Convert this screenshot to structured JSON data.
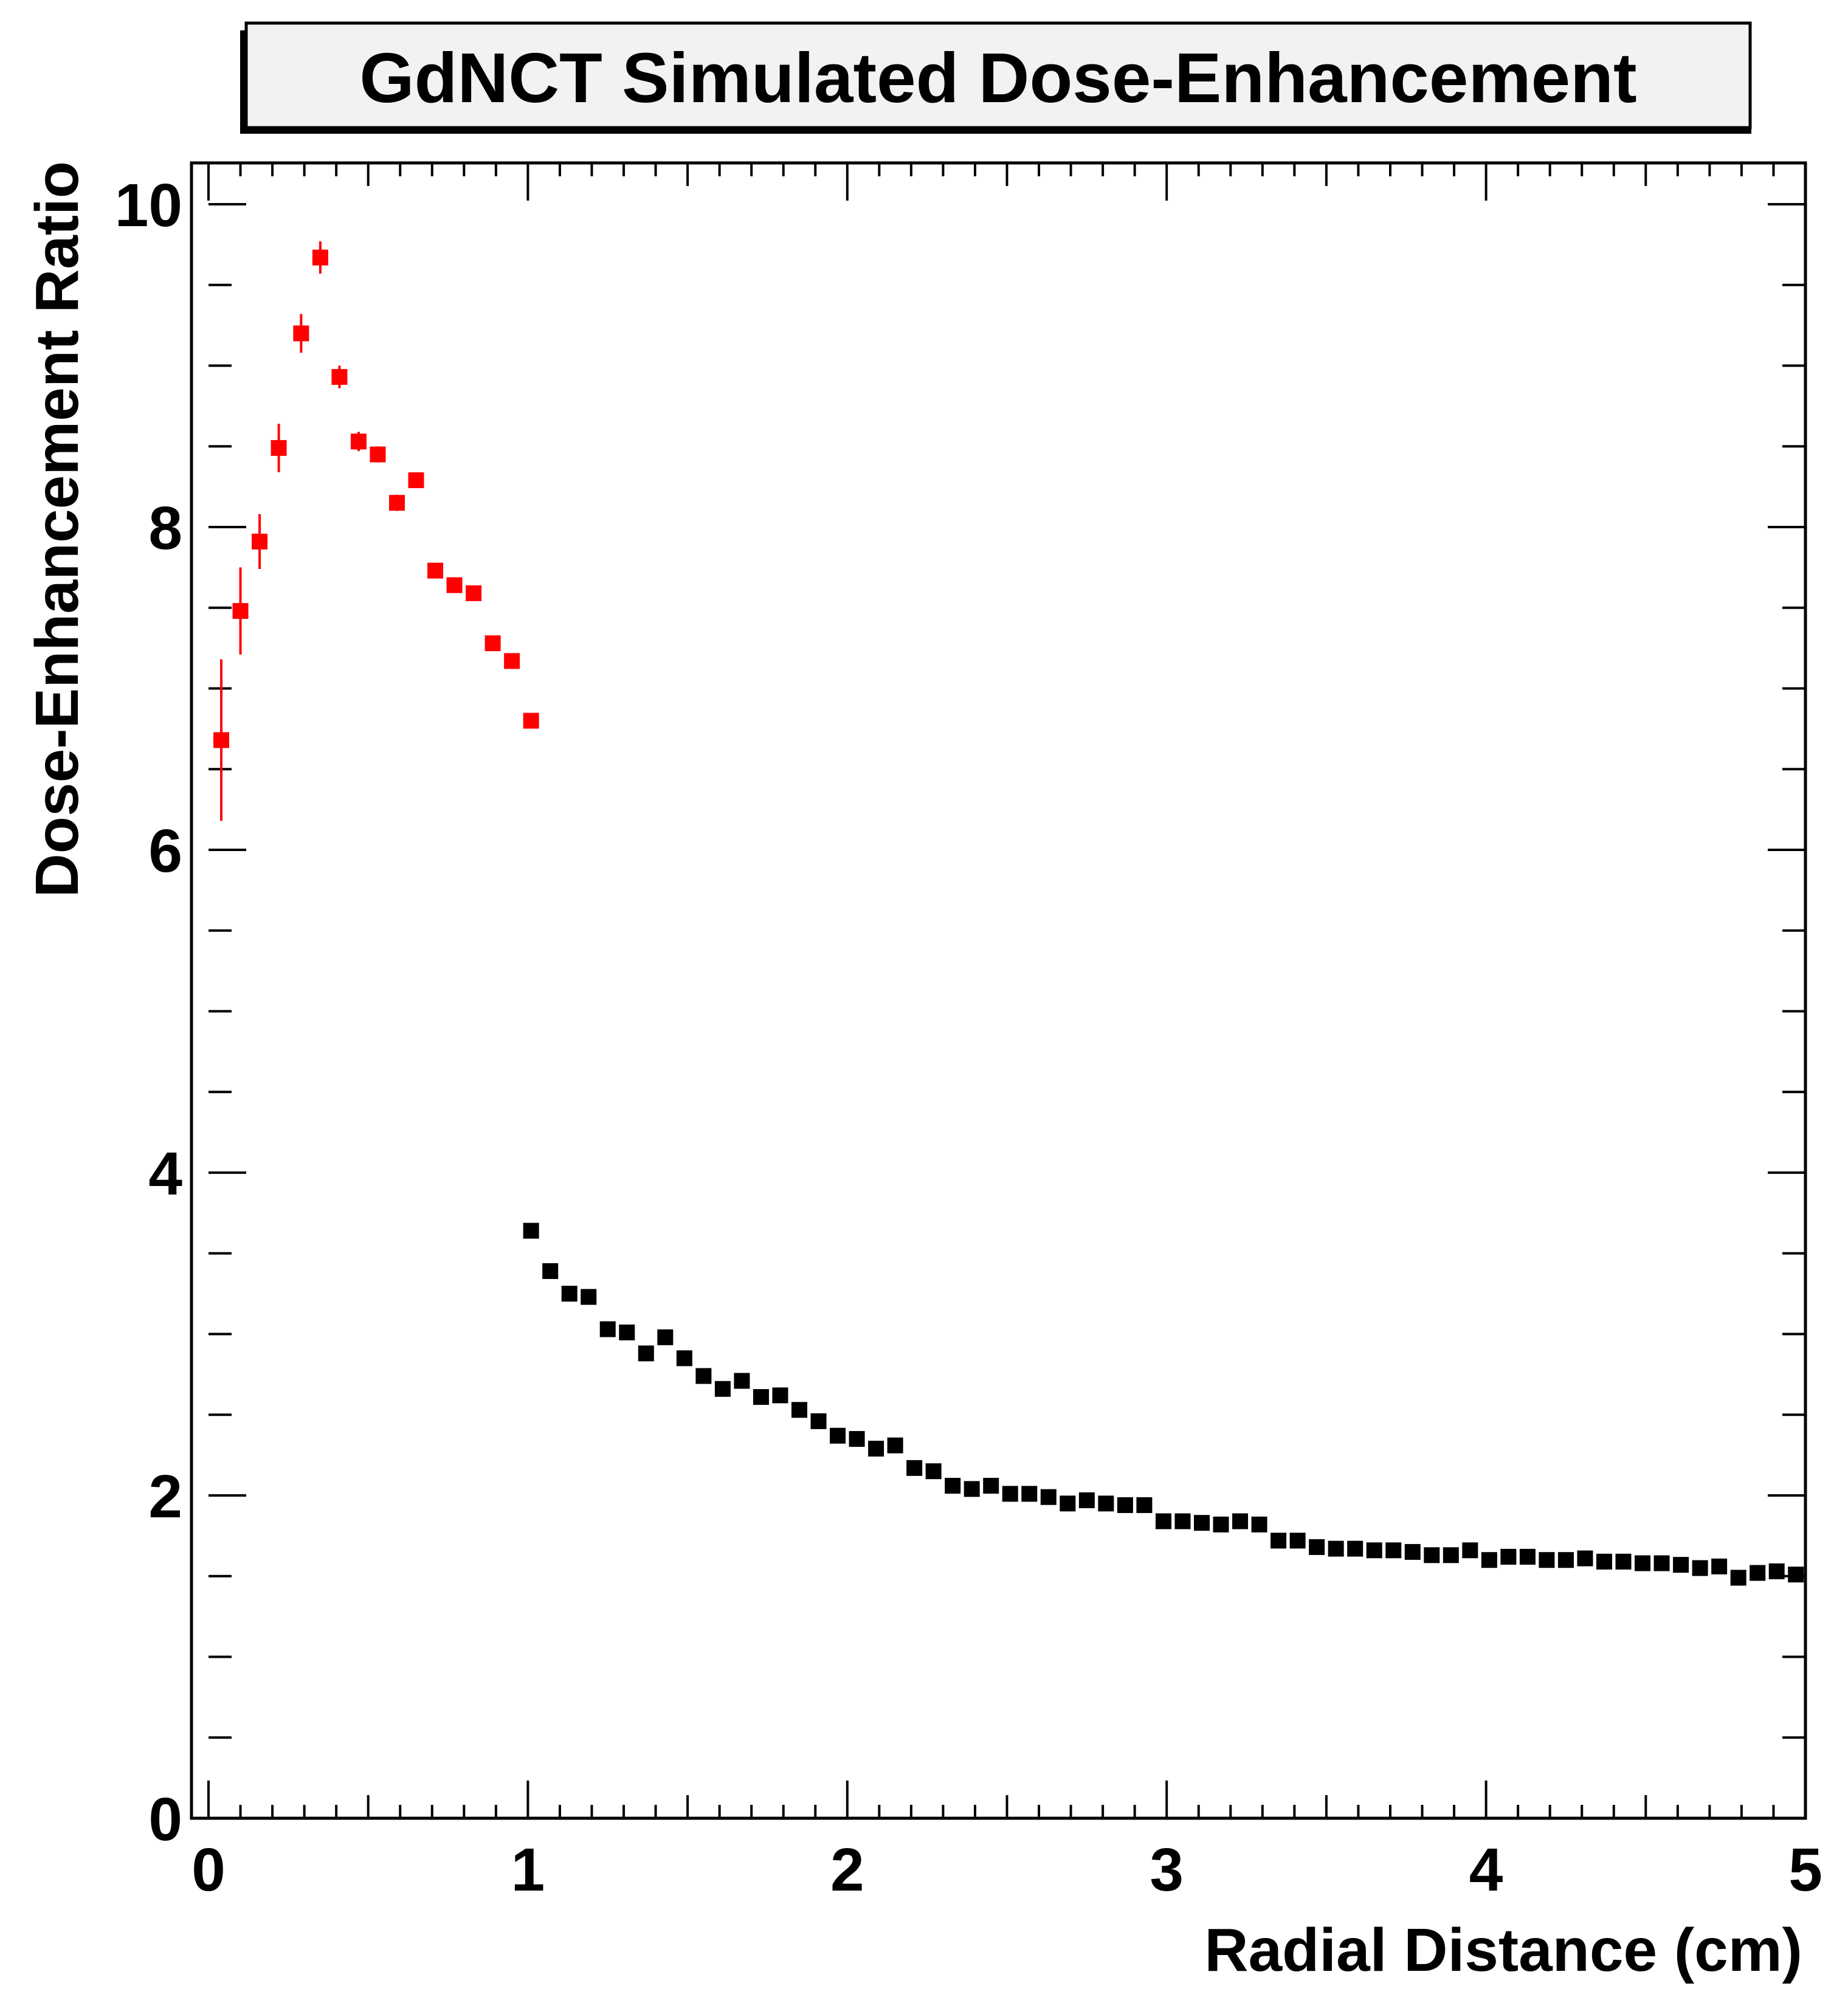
{
  "chart_data": {
    "type": "scatter",
    "title": "GdNCT Simulated Dose-Enhancement",
    "xlabel": "Radial Distance (cm)",
    "ylabel": "Dose-Enhancement Ratio",
    "xlim": [
      0,
      5
    ],
    "ylim": [
      0,
      10
    ],
    "x_ticks": [
      "0",
      "1",
      "2",
      "3",
      "4",
      "5"
    ],
    "y_ticks": [
      "0",
      "2",
      "4",
      "6",
      "8",
      "10"
    ],
    "grid": false,
    "legend": "none",
    "series": [
      {
        "color": "#ff0000",
        "points": [
          {
            "x": 0.04,
            "y": 6.68,
            "err": 0.5
          },
          {
            "x": 0.1,
            "y": 7.48,
            "err": 0.27
          },
          {
            "x": 0.16,
            "y": 7.91,
            "err": 0.17
          },
          {
            "x": 0.22,
            "y": 8.49,
            "err": 0.15
          },
          {
            "x": 0.29,
            "y": 9.2,
            "err": 0.12
          },
          {
            "x": 0.35,
            "y": 9.67,
            "err": 0.1
          },
          {
            "x": 0.41,
            "y": 8.93,
            "err": 0.07
          },
          {
            "x": 0.47,
            "y": 8.53,
            "err": 0.06
          },
          {
            "x": 0.53,
            "y": 8.45,
            "err": 0.05
          },
          {
            "x": 0.59,
            "y": 8.15,
            "err": 0.05
          },
          {
            "x": 0.65,
            "y": 8.29,
            "err": 0.04
          },
          {
            "x": 0.71,
            "y": 7.73,
            "err": 0.04
          },
          {
            "x": 0.77,
            "y": 7.64,
            "err": 0.04
          },
          {
            "x": 0.83,
            "y": 7.59,
            "err": 0.03
          },
          {
            "x": 0.89,
            "y": 7.28,
            "err": 0.03
          },
          {
            "x": 0.95,
            "y": 7.17,
            "err": 0.03
          },
          {
            "x": 1.01,
            "y": 6.8,
            "err": 0.03
          }
        ]
      },
      {
        "color": "#000000",
        "points": [
          {
            "x": 1.01,
            "y": 3.64
          },
          {
            "x": 1.07,
            "y": 3.39
          },
          {
            "x": 1.13,
            "y": 3.25
          },
          {
            "x": 1.19,
            "y": 3.23
          },
          {
            "x": 1.25,
            "y": 3.03
          },
          {
            "x": 1.31,
            "y": 3.01
          },
          {
            "x": 1.37,
            "y": 2.88
          },
          {
            "x": 1.43,
            "y": 2.98
          },
          {
            "x": 1.49,
            "y": 2.85
          },
          {
            "x": 1.55,
            "y": 2.74
          },
          {
            "x": 1.61,
            "y": 2.66
          },
          {
            "x": 1.67,
            "y": 2.71
          },
          {
            "x": 1.73,
            "y": 2.61
          },
          {
            "x": 1.79,
            "y": 2.62
          },
          {
            "x": 1.85,
            "y": 2.53
          },
          {
            "x": 1.91,
            "y": 2.46
          },
          {
            "x": 1.97,
            "y": 2.37
          },
          {
            "x": 2.03,
            "y": 2.35
          },
          {
            "x": 2.09,
            "y": 2.29
          },
          {
            "x": 2.15,
            "y": 2.31
          },
          {
            "x": 2.21,
            "y": 2.17
          },
          {
            "x": 2.27,
            "y": 2.15
          },
          {
            "x": 2.33,
            "y": 2.06
          },
          {
            "x": 2.39,
            "y": 2.04
          },
          {
            "x": 2.45,
            "y": 2.06
          },
          {
            "x": 2.51,
            "y": 2.01
          },
          {
            "x": 2.57,
            "y": 2.01
          },
          {
            "x": 2.63,
            "y": 1.99
          },
          {
            "x": 2.69,
            "y": 1.95
          },
          {
            "x": 2.75,
            "y": 1.97
          },
          {
            "x": 2.81,
            "y": 1.95
          },
          {
            "x": 2.87,
            "y": 1.94
          },
          {
            "x": 2.93,
            "y": 1.94
          },
          {
            "x": 2.99,
            "y": 1.84
          },
          {
            "x": 3.05,
            "y": 1.84
          },
          {
            "x": 3.11,
            "y": 1.83
          },
          {
            "x": 3.17,
            "y": 1.82
          },
          {
            "x": 3.23,
            "y": 1.84
          },
          {
            "x": 3.29,
            "y": 1.82
          },
          {
            "x": 3.35,
            "y": 1.72
          },
          {
            "x": 3.41,
            "y": 1.72
          },
          {
            "x": 3.47,
            "y": 1.68
          },
          {
            "x": 3.53,
            "y": 1.67
          },
          {
            "x": 3.59,
            "y": 1.67
          },
          {
            "x": 3.65,
            "y": 1.66
          },
          {
            "x": 3.71,
            "y": 1.66
          },
          {
            "x": 3.77,
            "y": 1.65
          },
          {
            "x": 3.83,
            "y": 1.63
          },
          {
            "x": 3.89,
            "y": 1.63
          },
          {
            "x": 3.95,
            "y": 1.66
          },
          {
            "x": 4.01,
            "y": 1.6
          },
          {
            "x": 4.07,
            "y": 1.62
          },
          {
            "x": 4.13,
            "y": 1.62
          },
          {
            "x": 4.19,
            "y": 1.6
          },
          {
            "x": 4.25,
            "y": 1.6
          },
          {
            "x": 4.31,
            "y": 1.61
          },
          {
            "x": 4.37,
            "y": 1.59
          },
          {
            "x": 4.43,
            "y": 1.59
          },
          {
            "x": 4.49,
            "y": 1.58
          },
          {
            "x": 4.55,
            "y": 1.58
          },
          {
            "x": 4.61,
            "y": 1.57
          },
          {
            "x": 4.67,
            "y": 1.55
          },
          {
            "x": 4.73,
            "y": 1.56
          },
          {
            "x": 4.79,
            "y": 1.49
          },
          {
            "x": 4.85,
            "y": 1.52
          },
          {
            "x": 4.91,
            "y": 1.53
          },
          {
            "x": 4.97,
            "y": 1.51
          }
        ]
      }
    ]
  }
}
